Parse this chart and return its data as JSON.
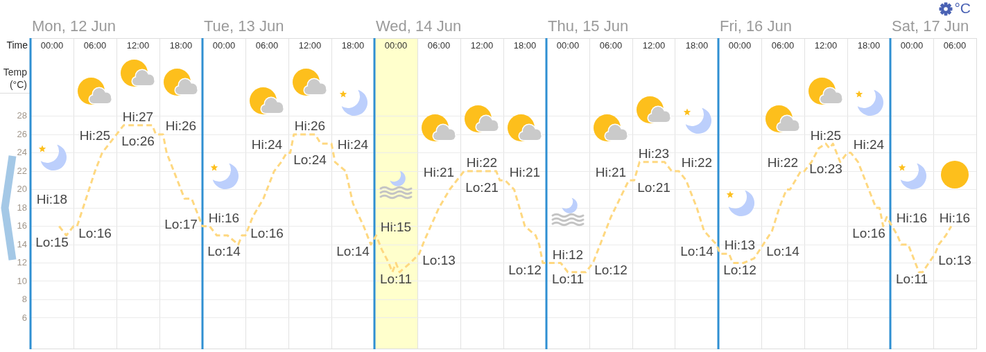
{
  "chart_data": {
    "type": "line",
    "xlabel": "Time",
    "ylabel": "Temp (°C)",
    "x": [
      "--06-12T01:00",
      "--06-12T02:00",
      "--06-12T03:00",
      "--06-12T03:30",
      "--06-12T06:00",
      "--06-12T07:00",
      "--06-12T09:00",
      "--06-12T10:00",
      "--06-12T14:00",
      "--06-12T14:30",
      "--06-12T15:30",
      "--06-12T16:00",
      "--06-12T18:30",
      "--06-12T19:30",
      "--06-12T21:00",
      "--06-12T22:00",
      "--06-12T23:00",
      "--06-13T00:30",
      "--06-13T02:00",
      "--06-13T02:30",
      "--06-13T03:00",
      "--06-13T04:00",
      "--06-13T05:30",
      "--06-13T07:00",
      "--06-13T08:00",
      "--06-13T08:45",
      "--06-13T09:15",
      "--06-13T09:45",
      "--06-13T12:45",
      "--06-13T13:30",
      "--06-13T15:00",
      "--06-13T15:30",
      "--06-13T17:00",
      "--06-13T18:00",
      "--06-13T19:30",
      "--06-13T20:30",
      "--06-13T21:15",
      "--06-13T22:00",
      "--06-13T23:00",
      "--06-13T23:30",
      "--06-14T00:00",
      "--06-14T00:30",
      "--06-14T02:00",
      "--06-14T03:15",
      "--06-14T04:00",
      "--06-14T06:00",
      "--06-14T07:30",
      "--06-14T08:30",
      "--06-14T09:30",
      "--06-14T14:00",
      "--06-14T14:30",
      "--06-14T15:15",
      "--06-14T16:30",
      "--06-14T18:00",
      "--06-14T19:30",
      "--06-14T20:00",
      "--06-14T20:30",
      "--06-14T23:00",
      "--06-15T00:00",
      "--06-15T02:30",
      "--06-15T03:30",
      "--06-15T06:00",
      "--06-15T08:30",
      "--06-15T09:15",
      "--06-15T10:00",
      "--06-15T13:30",
      "--06-15T14:30",
      "--06-15T15:30",
      "--06-15T16:30",
      "--06-15T18:00",
      "--06-15T19:00",
      "--06-15T20:45",
      "--06-15T21:15",
      "--06-15T22:30",
      "--06-15T23:00",
      "--06-16T00:30",
      "--06-16T02:00",
      "--06-16T03:15",
      "--06-16T04:30",
      "--06-16T05:30",
      "--06-16T06:30",
      "--06-16T07:00",
      "--06-16T08:30",
      "--06-16T09:00",
      "--06-16T10:00",
      "--06-16T11:00",
      "--06-16T12:00",
      "--06-16T12:30",
      "--06-16T13:00",
      "--06-16T14:00",
      "--06-16T15:00",
      "--06-16T15:30",
      "--06-16T16:30",
      "--06-16T19:00",
      "--06-16T19:30",
      "--06-16T20:00",
      "--06-16T20:30",
      "--06-16T21:15",
      "--06-16T22:00",
      "--06-16T22:30",
      "--06-16T23:30",
      "--06-17T01:00",
      "--06-17T01:30",
      "--06-17T03:15",
      "--06-17T03:45",
      "--06-17T04:45",
      "--06-17T05:30"
    ],
    "values": [
      16,
      15,
      16,
      16,
      22,
      24,
      26,
      27,
      27,
      26,
      26,
      24,
      19,
      19,
      16,
      16,
      15,
      15,
      14,
      15,
      15,
      17,
      19,
      22,
      23,
      24,
      24,
      26,
      26,
      25,
      25,
      23,
      22,
      18.5,
      16,
      14,
      15,
      13.5,
      12,
      11,
      12,
      11,
      12,
      13,
      14.5,
      18,
      20,
      21,
      22,
      22,
      21,
      21,
      20,
      16,
      15,
      14,
      12,
      12,
      11,
      11,
      12,
      17,
      21,
      21,
      23,
      23,
      22,
      22,
      21,
      18,
      15.5,
      14,
      13,
      13,
      12,
      12,
      12.5,
      14,
      15.5,
      18,
      20,
      20,
      22,
      22,
      23,
      24.5,
      25,
      24.5,
      25,
      23,
      24,
      24,
      23,
      18,
      18,
      16,
      17,
      16,
      15,
      14,
      14,
      11,
      11,
      13,
      14,
      15,
      16
    ],
    "color": "#fed880",
    "line_style": "dashed",
    "marker": "none",
    "xlim": [
      "--06-11T21:00",
      "--06-17T09:00"
    ],
    "xticks": [
      {
        "value": "--06-12T00:00",
        "label": "00:00"
      },
      {
        "value": "--06-12T03:00",
        "label": null
      },
      {
        "value": "--06-12T06:00",
        "label": "06:00"
      },
      {
        "value": "--06-12T09:00",
        "label": null
      },
      {
        "value": "--06-12T12:00",
        "label": "12:00"
      },
      {
        "value": "--06-12T15:00",
        "label": null
      },
      {
        "value": "--06-12T18:00",
        "label": "18:00"
      },
      {
        "value": "--06-13T00:00",
        "label": "00:00"
      },
      {
        "value": "--06-13T03:00",
        "label": null
      },
      {
        "value": "--06-13T06:00",
        "label": "06:00"
      },
      {
        "value": "--06-13T09:00",
        "label": null
      },
      {
        "value": "--06-13T12:00",
        "label": "12:00"
      },
      {
        "value": "--06-13T15:00",
        "label": null
      },
      {
        "value": "--06-13T18:00",
        "label": "18:00"
      },
      {
        "value": "--06-14T00:00",
        "label": "00:00"
      },
      {
        "value": "--06-14T03:00",
        "label": null
      },
      {
        "value": "--06-14T06:00",
        "label": "06:00"
      },
      {
        "value": "--06-14T09:00",
        "label": null
      },
      {
        "value": "--06-14T12:00",
        "label": "12:00"
      },
      {
        "value": "--06-14T15:00",
        "label": null
      },
      {
        "value": "--06-14T18:00",
        "label": "18:00"
      },
      {
        "value": "--06-15T00:00",
        "label": "00:00"
      },
      {
        "value": "--06-15T03:00",
        "label": null
      },
      {
        "value": "--06-15T06:00",
        "label": "06:00"
      },
      {
        "value": "--06-15T09:00",
        "label": null
      },
      {
        "value": "--06-15T12:00",
        "label": "12:00"
      },
      {
        "value": "--06-15T15:00",
        "label": null
      },
      {
        "value": "--06-15T18:00",
        "label": "18:00"
      },
      {
        "value": "--06-16T00:00",
        "label": "00:00"
      },
      {
        "value": "--06-16T03:00",
        "label": null
      },
      {
        "value": "--06-16T06:00",
        "label": "06:00"
      },
      {
        "value": "--06-16T09:00",
        "label": null
      },
      {
        "value": "--06-16T12:00",
        "label": "12:00"
      },
      {
        "value": "--06-16T15:00",
        "label": null
      },
      {
        "value": "--06-16T18:00",
        "label": "18:00"
      },
      {
        "value": "--06-17T00:00",
        "label": "00:00"
      },
      {
        "value": "--06-17T03:00",
        "label": null
      },
      {
        "value": "--06-17T06:00",
        "label": "06:00"
      }
    ],
    "ylim": [
      2.6,
      36.5
    ],
    "yticks": [
      6,
      8,
      10,
      12,
      14,
      16,
      18,
      20,
      22,
      24,
      26,
      28
    ],
    "grid": true,
    "ref_lines": [
      {
        "axis": "x",
        "value": "--06-11T21:00",
        "label": "Mon, 12 Jun",
        "color": "#2f8fd2"
      },
      {
        "axis": "x",
        "value": "--06-12T21:00",
        "label": "Tue, 13 Jun",
        "color": "#2f8fd2"
      },
      {
        "axis": "x",
        "value": "--06-13T21:00",
        "label": "Wed, 14 Jun",
        "color": "#2f8fd2"
      },
      {
        "axis": "x",
        "value": "--06-14T21:00",
        "label": "Thu, 15 Jun",
        "color": "#2f8fd2"
      },
      {
        "axis": "x",
        "value": "--06-15T21:00",
        "label": "Fri, 16 Jun",
        "color": "#2f8fd2"
      },
      {
        "axis": "x",
        "value": "--06-16T21:00",
        "label": "Sat, 17 Jun",
        "color": "#2f8fd2"
      }
    ],
    "bands": [
      {
        "axis": "x",
        "from": "--06-13T21:00",
        "to": "--06-14T03:00",
        "color": "#ffffcc"
      }
    ],
    "annotations": [
      "Hi:18",
      {
        "text": "Lo:15",
        "x": "--06-12T02:00",
        "y": 15
      },
      {
        "text": "Hi:25",
        "x": "--06-12T08:00",
        "y": 25
      },
      {
        "text": "Lo:16",
        "x": "--06-12T03:30",
        "y": 16
      },
      {
        "text": "Hi:27",
        "x": "--06-12T12:00",
        "y": 27
      },
      {
        "text": "Lo:26",
        "x": "--06-12T14:30",
        "y": 26
      },
      {
        "text": "Hi:26",
        "x": "--06-12T15:30",
        "y": 26
      },
      {
        "text": "Lo:17",
        "x": "--06-12T20:30",
        "y": 17
      },
      {
        "text": "Hi:16",
        "x": "--06-12T22:00",
        "y": 16
      },
      {
        "text": "Lo:14",
        "x": "--06-13T02:00",
        "y": 14
      },
      {
        "text": "Hi:24",
        "x": "--06-13T08:45",
        "y": 24
      },
      {
        "text": "Lo:16",
        "x": "--06-13T03:30",
        "y": 16
      },
      {
        "text": "Hi:26",
        "x": "--06-13T11:00",
        "y": 26
      },
      {
        "text": "Lo:24",
        "x": "--06-13T09:15",
        "y": 24
      },
      {
        "text": "Hi:24",
        "x": "--06-13T15:15",
        "y": 24
      },
      {
        "text": "Lo:14",
        "x": "--06-13T20:30",
        "y": 14
      },
      {
        "text": "Hi:15",
        "x": "--06-13T21:15",
        "y": 15
      },
      {
        "text": "Lo:11",
        "x": "--06-13T23:30",
        "y": 11
      },
      {
        "text": "Hi:21",
        "x": "--06-14T08:30",
        "y": 21
      },
      {
        "text": "Lo:13",
        "x": "--06-14T03:15",
        "y": 13
      },
      {
        "text": "Hi:22",
        "x": "--06-14T12:00",
        "y": 22
      },
      {
        "text": "Lo:21",
        "x": "--06-14T14:30",
        "y": 21
      },
      {
        "text": "Hi:21",
        "x": "--06-14T15:15",
        "y": 21
      },
      {
        "text": "Lo:12",
        "x": "--06-14T20:30",
        "y": 12
      },
      {
        "text": "Hi:12",
        "x": "--06-14T23:00",
        "y": 12
      },
      {
        "text": "Lo:11",
        "x": "--06-15T00:00",
        "y": 11
      },
      {
        "text": "Hi:21",
        "x": "--06-15T08:30",
        "y": 21
      },
      {
        "text": "Lo:12",
        "x": "--06-15T03:30",
        "y": 12
      },
      {
        "text": "Hi:23",
        "x": "--06-15T12:00",
        "y": 23
      },
      {
        "text": "Lo:21",
        "x": "--06-15T09:15",
        "y": 21
      },
      {
        "text": "Hi:22",
        "x": "--06-15T15:30",
        "y": 22
      },
      {
        "text": "Lo:14",
        "x": "--06-15T20:45",
        "y": 14
      },
      {
        "text": "Hi:13",
        "x": "--06-15T21:15",
        "y": 13
      },
      {
        "text": "Lo:12",
        "x": "--06-16T00:00",
        "y": 12
      },
      {
        "text": "Hi:22",
        "x": "--06-16T08:30",
        "y": 22
      },
      {
        "text": "Lo:14",
        "x": "--06-16T03:15",
        "y": 14
      },
      {
        "text": "Hi:25",
        "x": "--06-16T12:00",
        "y": 25
      },
      {
        "text": "Lo:23",
        "x": "--06-16T14:00",
        "y": 23
      },
      {
        "text": "Hi:24",
        "x": "--06-16T15:30",
        "y": 24
      },
      {
        "text": "Lo:16",
        "x": "--06-16T20:00",
        "y": 16
      },
      {
        "text": "Hi:16",
        "x": "--06-16T21:15",
        "y": 16
      },
      {
        "text": "Lo:11",
        "x": "--06-17T01:00",
        "y": 11
      },
      {
        "text": "Hi:16",
        "x": "--06-17T05:30",
        "y": 16
      },
      {
        "text": "Lo:13",
        "x": "--06-17T03:15",
        "y": 13
      },
      "°C"
    ]
  }
}
